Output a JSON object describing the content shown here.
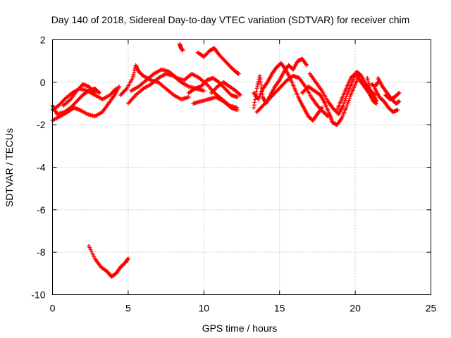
{
  "chart_data": {
    "type": "scatter",
    "title": "Day 140 of 2018, Sidereal Day-to-day VTEC variation (SDTVAR) for receiver chim",
    "xlabel": "GPS time / hours",
    "ylabel": "SDTVAR / TECUs",
    "xlim": [
      0,
      25
    ],
    "ylim": [
      -10,
      2
    ],
    "xticks": [
      0,
      5,
      10,
      15,
      20,
      25
    ],
    "yticks": [
      -10,
      -8,
      -6,
      -4,
      -2,
      0,
      2
    ],
    "grid": true,
    "marker": "+",
    "series": [
      {
        "name": "SDTVAR",
        "color": "#ff0000",
        "tracks": [
          [
            [
              0,
              -1.1
            ],
            [
              0.3,
              -1.5
            ],
            [
              0.8,
              -1.4
            ],
            [
              1.2,
              -1.2
            ],
            [
              1.6,
              -0.9
            ],
            [
              2.0,
              -0.6
            ],
            [
              2.4,
              -0.4
            ],
            [
              2.8,
              -0.3
            ],
            [
              3.1,
              -0.5
            ]
          ],
          [
            [
              0,
              -1.8
            ],
            [
              0.5,
              -1.6
            ],
            [
              1.0,
              -1.4
            ],
            [
              1.4,
              -1.2
            ],
            [
              1.8,
              -1.3
            ],
            [
              2.3,
              -1.5
            ],
            [
              2.8,
              -1.6
            ],
            [
              3.3,
              -1.4
            ],
            [
              3.7,
              -1.0
            ],
            [
              4.1,
              -0.6
            ],
            [
              4.4,
              -0.2
            ]
          ],
          [
            [
              0,
              -1.3
            ],
            [
              0.4,
              -1.1
            ],
            [
              0.8,
              -0.8
            ],
            [
              1.3,
              -0.5
            ],
            [
              1.8,
              -0.3
            ],
            [
              2.3,
              -0.4
            ],
            [
              2.8,
              -0.6
            ],
            [
              3.3,
              -0.8
            ],
            [
              3.8,
              -0.6
            ],
            [
              4.2,
              -0.3
            ]
          ],
          [
            [
              0.7,
              -1.1
            ],
            [
              1.2,
              -0.8
            ],
            [
              1.6,
              -0.4
            ],
            [
              2.0,
              -0.1
            ],
            [
              2.4,
              -0.2
            ],
            [
              2.8,
              -0.5
            ]
          ],
          [
            [
              2.4,
              -7.7
            ],
            [
              2.8,
              -8.3
            ],
            [
              3.2,
              -8.7
            ],
            [
              3.6,
              -8.9
            ],
            [
              3.9,
              -9.15
            ],
            [
              4.2,
              -9.0
            ],
            [
              4.5,
              -8.7
            ],
            [
              4.8,
              -8.5
            ],
            [
              5.0,
              -8.3
            ]
          ],
          [
            [
              4.5,
              -0.6
            ],
            [
              4.9,
              -0.3
            ],
            [
              5.3,
              0.2
            ],
            [
              5.5,
              0.8
            ],
            [
              5.7,
              0.5
            ],
            [
              6.0,
              0.3
            ],
            [
              6.5,
              0.1
            ],
            [
              7.0,
              0.0
            ],
            [
              7.5,
              -0.3
            ],
            [
              8.0,
              -0.6
            ],
            [
              8.5,
              -0.8
            ],
            [
              9.0,
              -0.7
            ]
          ],
          [
            [
              5.0,
              -1.0
            ],
            [
              5.5,
              -0.6
            ],
            [
              6.0,
              -0.3
            ],
            [
              6.5,
              -0.1
            ],
            [
              7.0,
              0.2
            ],
            [
              7.5,
              0.4
            ],
            [
              8.0,
              0.3
            ],
            [
              8.5,
              0.0
            ],
            [
              9.0,
              -0.2
            ],
            [
              9.5,
              -0.3
            ],
            [
              10.0,
              -0.4
            ]
          ],
          [
            [
              5.2,
              -0.4
            ],
            [
              5.7,
              -0.2
            ],
            [
              6.2,
              0.1
            ],
            [
              6.7,
              0.4
            ],
            [
              7.2,
              0.6
            ],
            [
              7.7,
              0.5
            ],
            [
              8.2,
              0.2
            ],
            [
              8.7,
              0.1
            ],
            [
              9.2,
              0.4
            ],
            [
              9.7,
              0.2
            ],
            [
              10.2,
              -0.1
            ],
            [
              10.7,
              -0.5
            ],
            [
              11.2,
              -0.8
            ],
            [
              11.7,
              -1.1
            ],
            [
              12.2,
              -1.2
            ]
          ],
          [
            [
              8.4,
              1.8
            ],
            [
              8.5,
              1.6
            ],
            [
              8.6,
              1.5
            ]
          ],
          [
            [
              9.6,
              1.4
            ],
            [
              10.0,
              1.2
            ],
            [
              10.4,
              1.5
            ],
            [
              10.7,
              1.6
            ],
            [
              11.0,
              1.3
            ],
            [
              11.4,
              1.0
            ],
            [
              11.8,
              0.7
            ],
            [
              12.1,
              0.5
            ],
            [
              12.3,
              0.4
            ]
          ],
          [
            [
              9.0,
              -0.5
            ],
            [
              9.4,
              -0.3
            ],
            [
              9.8,
              -0.2
            ],
            [
              10.2,
              0.1
            ],
            [
              10.6,
              0.2
            ],
            [
              11.0,
              0.0
            ],
            [
              11.4,
              -0.3
            ],
            [
              11.8,
              -0.6
            ],
            [
              12.2,
              -0.7
            ]
          ],
          [
            [
              9.3,
              -1.0
            ],
            [
              9.8,
              -0.9
            ],
            [
              10.3,
              -0.8
            ],
            [
              10.8,
              -0.7
            ],
            [
              11.3,
              -0.9
            ],
            [
              11.8,
              -1.2
            ],
            [
              12.2,
              -1.3
            ]
          ],
          [
            [
              10.5,
              -0.5
            ],
            [
              10.9,
              -0.2
            ],
            [
              11.3,
              0.0
            ],
            [
              11.7,
              -0.2
            ],
            [
              12.1,
              -0.4
            ],
            [
              12.4,
              -0.6
            ]
          ],
          [
            [
              13.3,
              -1.2
            ],
            [
              13.5,
              -0.3
            ],
            [
              13.7,
              0.3
            ],
            [
              13.9,
              -0.7
            ],
            [
              14.1,
              -1.0
            ],
            [
              14.4,
              -0.6
            ],
            [
              14.7,
              -0.2
            ],
            [
              15.0,
              0.1
            ],
            [
              15.3,
              0.5
            ],
            [
              15.6,
              0.8
            ],
            [
              15.9,
              0.6
            ],
            [
              16.2,
              1.0
            ],
            [
              16.5,
              1.1
            ],
            [
              16.8,
              0.8
            ]
          ],
          [
            [
              13.3,
              -0.5
            ],
            [
              13.6,
              -0.8
            ],
            [
              13.9,
              -0.3
            ],
            [
              14.2,
              0.0
            ],
            [
              14.5,
              0.4
            ],
            [
              14.8,
              0.7
            ],
            [
              15.1,
              0.9
            ],
            [
              15.4,
              0.6
            ],
            [
              15.7,
              0.2
            ],
            [
              16.0,
              -0.3
            ],
            [
              16.3,
              -0.8
            ],
            [
              16.6,
              -1.2
            ],
            [
              16.9,
              -1.6
            ],
            [
              17.2,
              -1.8
            ],
            [
              17.5,
              -1.5
            ],
            [
              17.8,
              -1.2
            ]
          ],
          [
            [
              13.5,
              -1.4
            ],
            [
              13.9,
              -1.1
            ],
            [
              14.3,
              -0.8
            ],
            [
              14.7,
              -0.5
            ],
            [
              15.1,
              -0.2
            ],
            [
              15.5,
              0.1
            ],
            [
              15.9,
              0.3
            ],
            [
              16.3,
              0.2
            ],
            [
              16.7,
              -0.2
            ],
            [
              17.1,
              -0.7
            ],
            [
              17.5,
              -1.1
            ],
            [
              17.9,
              -1.4
            ],
            [
              18.2,
              -1.6
            ]
          ],
          [
            [
              16.5,
              -0.5
            ],
            [
              16.9,
              -0.2
            ],
            [
              17.3,
              -0.4
            ],
            [
              17.7,
              -0.6
            ],
            [
              18.0,
              -1.0
            ],
            [
              18.3,
              -1.5
            ],
            [
              18.5,
              -1.9
            ],
            [
              18.8,
              -2.0
            ],
            [
              19.1,
              -1.7
            ],
            [
              19.4,
              -1.2
            ],
            [
              19.7,
              -0.6
            ],
            [
              20.0,
              -0.1
            ],
            [
              20.3,
              0.4
            ]
          ],
          [
            [
              17.0,
              0.4
            ],
            [
              17.4,
              0.0
            ],
            [
              17.8,
              -0.4
            ],
            [
              18.2,
              -0.9
            ],
            [
              18.5,
              -1.2
            ],
            [
              18.9,
              -1.5
            ],
            [
              19.2,
              -1.1
            ],
            [
              19.5,
              -0.5
            ],
            [
              19.8,
              0.0
            ],
            [
              20.1,
              0.5
            ],
            [
              20.4,
              0.3
            ],
            [
              20.7,
              -0.1
            ],
            [
              21.0,
              -0.4
            ],
            [
              21.3,
              -0.6
            ]
          ],
          [
            [
              18.8,
              -1.3
            ],
            [
              19.1,
              -0.8
            ],
            [
              19.4,
              -0.3
            ],
            [
              19.7,
              0.2
            ],
            [
              20.0,
              0.4
            ],
            [
              20.3,
              0.1
            ],
            [
              20.6,
              -0.2
            ],
            [
              20.9,
              -0.5
            ],
            [
              21.2,
              -0.9
            ],
            [
              21.4,
              -1.0
            ]
          ],
          [
            [
              21.1,
              -0.1
            ],
            [
              21.3,
              -0.2
            ],
            [
              21.5,
              0.0
            ]
          ],
          [
            [
              21.3,
              -0.3
            ],
            [
              21.6,
              -0.7
            ],
            [
              21.9,
              -0.9
            ],
            [
              22.2,
              -1.2
            ],
            [
              22.5,
              -1.4
            ],
            [
              22.8,
              -1.3
            ]
          ],
          [
            [
              21.5,
              0.2
            ],
            [
              21.8,
              -0.2
            ],
            [
              22.1,
              -0.5
            ],
            [
              22.4,
              -0.8
            ],
            [
              22.7,
              -1.0
            ],
            [
              22.9,
              -0.9
            ]
          ],
          [
            [
              22.0,
              -0.6
            ],
            [
              22.3,
              -0.8
            ],
            [
              22.6,
              -0.7
            ],
            [
              22.9,
              -0.5
            ]
          ],
          [
            [
              20.8,
              0.2
            ],
            [
              21.0,
              -0.4
            ],
            [
              21.2,
              -0.6
            ],
            [
              21.4,
              -0.9
            ]
          ]
        ]
      }
    ]
  }
}
